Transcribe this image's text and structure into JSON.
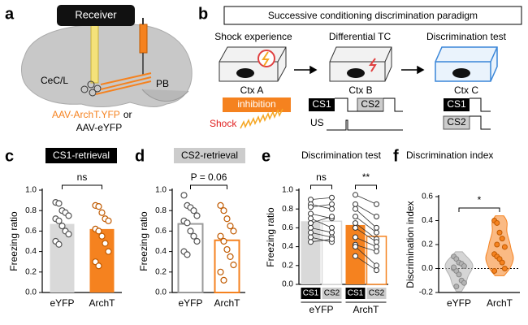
{
  "panel_letters": [
    "a",
    "b",
    "c",
    "d",
    "e",
    "f"
  ],
  "diagram_a": {
    "receiver": "Receiver",
    "region_1": "CeC/L",
    "region_2": "PB",
    "virus_1": "AAV-ArchT.YFP",
    "conjunction": "or",
    "virus_2": "AAV-eYFP"
  },
  "diagram_b": {
    "title": "Successive conditioning discrimination paradigm",
    "stages": [
      "Shock experience",
      "Differential TC",
      "Discrimination test"
    ],
    "contexts": [
      "Ctx A",
      "Ctx B",
      "Ctx C"
    ],
    "inhibition": "inhibition",
    "shock": "Shock",
    "tc_cs1": "CS1",
    "tc_cs2": "CS2",
    "us": "US",
    "test_cs1": "CS1",
    "test_cs2": "CS2"
  },
  "chart_data": [
    {
      "type": "bar",
      "bar_style": "filled",
      "title": "CS1-retrieval",
      "ylabel": "Freezing ratio",
      "categories": [
        "eYFP",
        "ArchT"
      ],
      "values": [
        0.67,
        0.62
      ],
      "colors": [
        "#d9d9d9",
        "#f5821f"
      ],
      "points": [
        [
          0.88,
          0.87,
          0.8,
          0.78,
          0.75,
          0.72,
          0.7,
          0.65,
          0.6,
          0.57,
          0.5,
          0.47
        ],
        [
          0.85,
          0.84,
          0.78,
          0.72,
          0.7,
          0.62,
          0.6,
          0.55,
          0.48,
          0.4,
          0.3,
          0.26
        ]
      ],
      "ylim": [
        0,
        1
      ],
      "yticks": [
        {
          "value": 0,
          "label": "0.0"
        },
        0.2,
        0.4,
        0.6,
        0.8,
        {
          "value": 1,
          "label": "1.0"
        }
      ],
      "annotation": "ns"
    },
    {
      "type": "bar",
      "bar_style": "outline",
      "title": "CS2-retrieval",
      "ylabel": "Freezing ratio",
      "categories": [
        "eYFP",
        "ArchT"
      ],
      "values": [
        0.67,
        0.51
      ],
      "colors": [
        "#9a9a9a",
        "#f5821f"
      ],
      "points": [
        [
          0.95,
          0.85,
          0.83,
          0.8,
          0.75,
          0.7,
          0.68,
          0.6,
          0.55,
          0.5,
          0.4,
          0.37
        ],
        [
          0.85,
          0.8,
          0.72,
          0.65,
          0.6,
          0.55,
          0.5,
          0.42,
          0.35,
          0.27,
          0.2,
          0.12
        ]
      ],
      "ylim": [
        0,
        1
      ],
      "yticks": [
        {
          "value": 0,
          "label": "0.0"
        },
        0.2,
        0.4,
        0.6,
        0.8,
        {
          "value": 1,
          "label": "1.0"
        }
      ],
      "annotation": "P = 0.06"
    },
    {
      "type": "paired",
      "title": "Discrimination test",
      "ylabel": "Freezing ratio",
      "conditions": [
        "CS1",
        "CS2"
      ],
      "series": [
        {
          "name": "eYFP",
          "color": "#d9d9d9",
          "values": [
            0.67,
            0.67
          ],
          "points": [
            [
              0.9,
              0.85,
              0.82,
              0.75,
              0.7,
              0.65,
              0.6,
              0.55,
              0.5,
              0.45
            ],
            [
              0.92,
              0.8,
              0.85,
              0.7,
              0.6,
              0.72,
              0.55,
              0.5,
              0.45,
              0.48
            ]
          ]
        },
        {
          "name": "ArchT",
          "color": "#f5821f",
          "values": [
            0.63,
            0.51
          ],
          "points": [
            [
              0.95,
              0.85,
              0.8,
              0.72,
              0.65,
              0.6,
              0.5,
              0.42,
              0.4,
              0.3
            ],
            [
              0.85,
              0.72,
              0.6,
              0.55,
              0.48,
              0.45,
              0.4,
              0.35,
              0.2,
              0.15
            ]
          ]
        }
      ],
      "ylim": [
        0,
        1
      ],
      "yticks": [
        {
          "value": 0,
          "label": "0.0"
        },
        0.2,
        0.4,
        0.6,
        0.8,
        {
          "value": 1,
          "label": "1.0"
        }
      ],
      "annotations": [
        "ns",
        "**"
      ]
    },
    {
      "type": "violin",
      "title": "Discrimination index",
      "ylabel": "Discrimination index",
      "series": [
        {
          "name": "eYFP",
          "color": "#b3b3b3",
          "points": [
            0.1,
            0.08,
            0.05,
            0.04,
            0.02,
            0,
            -0.02,
            -0.05,
            -0.1,
            -0.12,
            0.01,
            -0.15
          ]
        },
        {
          "name": "ArchT",
          "color": "#f5821f",
          "points": [
            0.4,
            0.38,
            0.3,
            0.25,
            0.18,
            0.12,
            0.1,
            0.08,
            0.05,
            0,
            -0.02,
            0.2
          ]
        }
      ],
      "ylim": [
        -0.2,
        0.6
      ],
      "yticks": [
        -0.2,
        {
          "value": 0,
          "label": "0.0"
        },
        0.2,
        0.4,
        0.6
      ],
      "hline": 0,
      "annotation": "*"
    }
  ]
}
